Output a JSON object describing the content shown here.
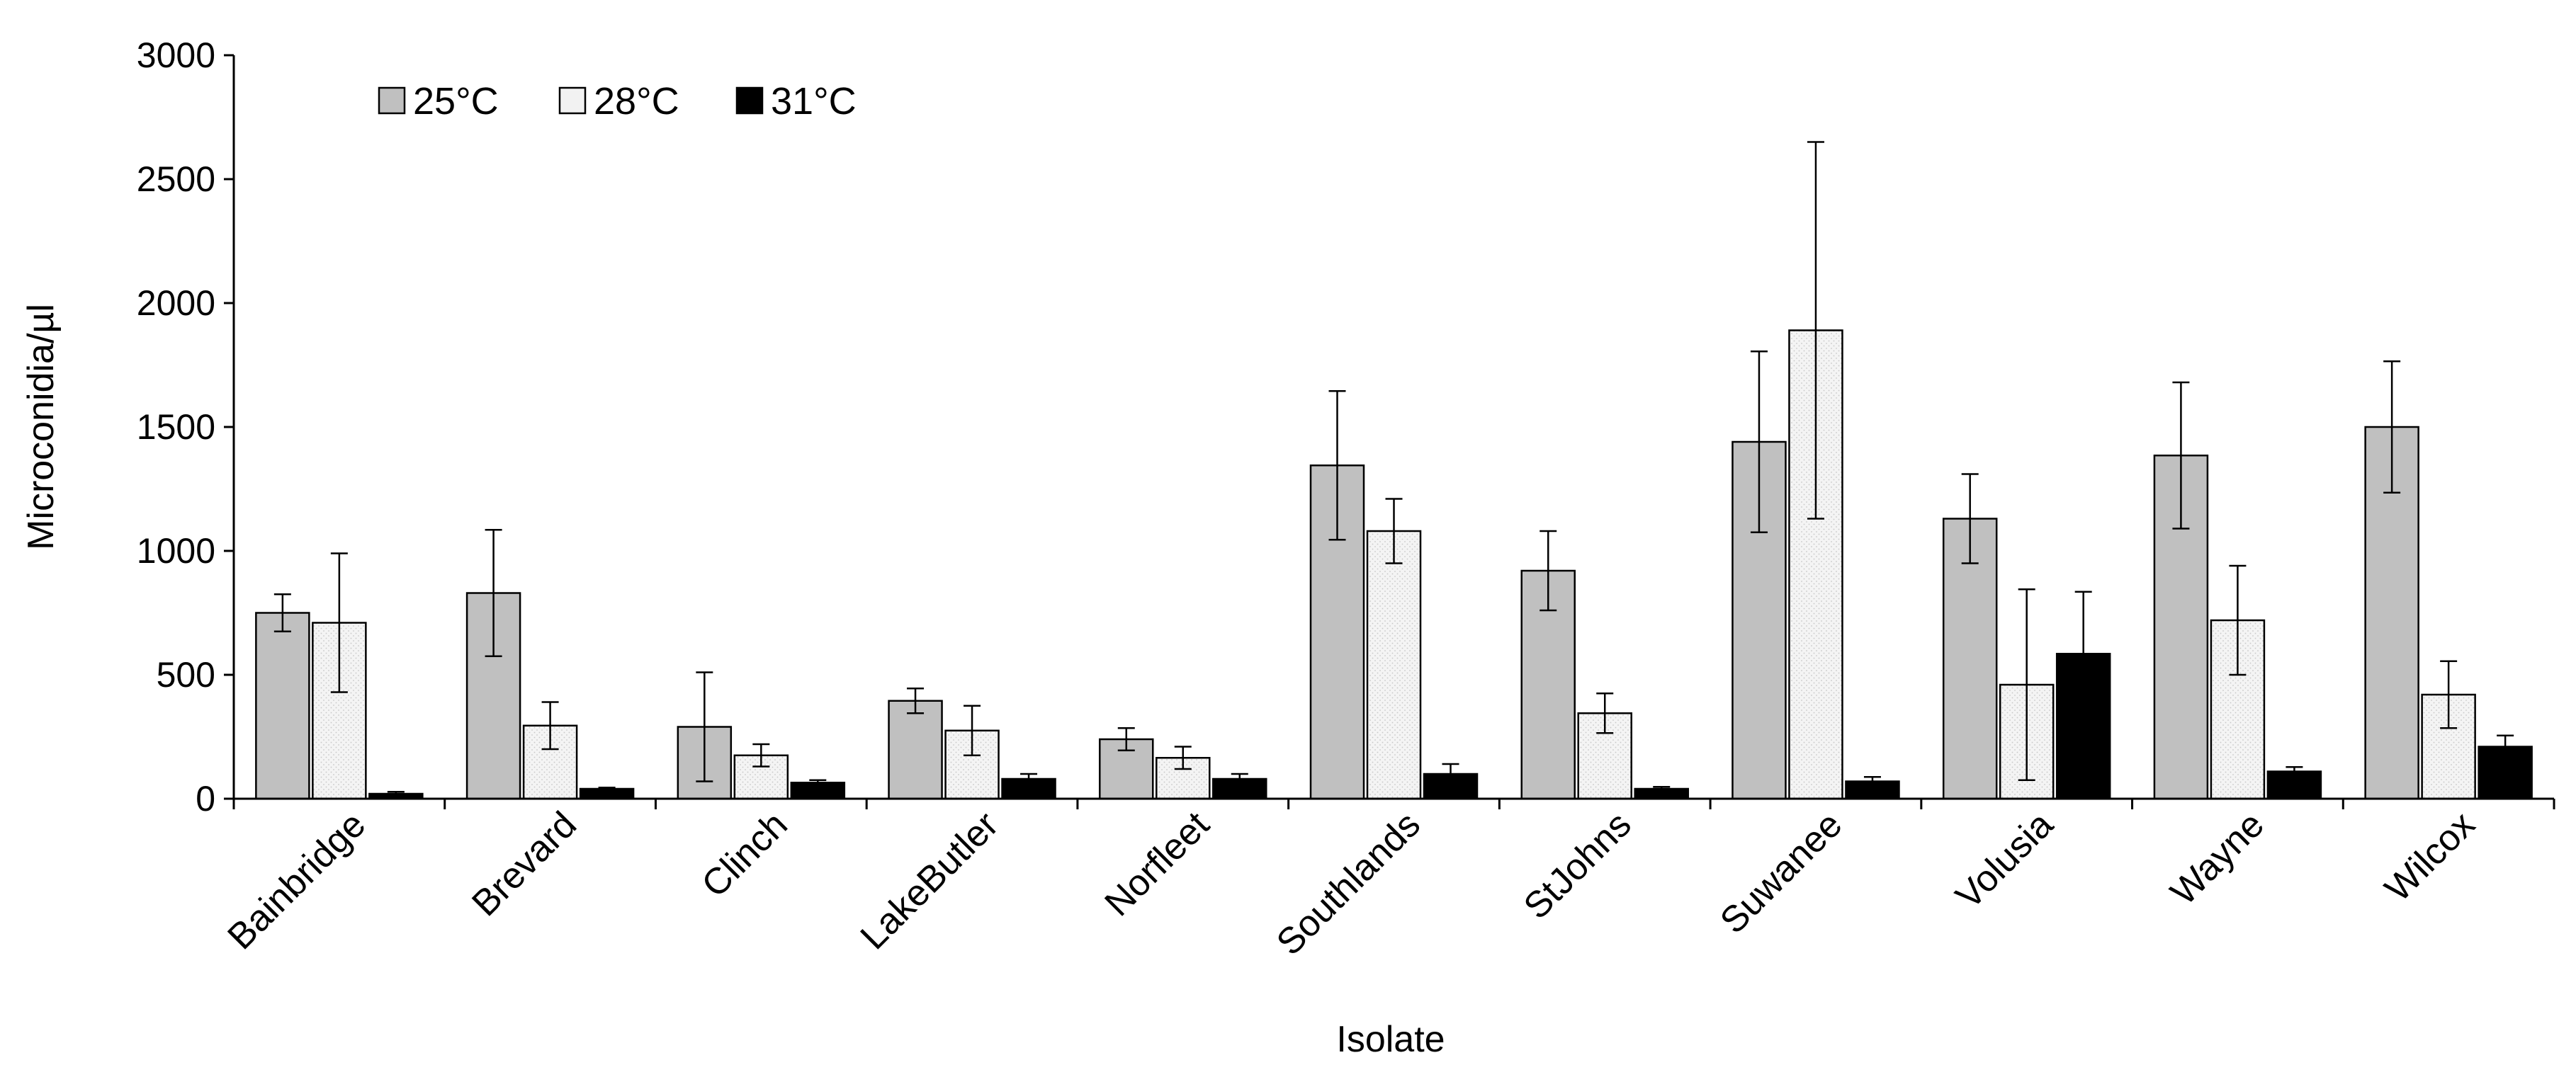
{
  "chart_data": {
    "type": "bar",
    "title": "",
    "xlabel": "Isolate",
    "ylabel": "Microconidia/µl",
    "ylim": [
      0,
      3000
    ],
    "yticks": [
      0,
      500,
      1000,
      1500,
      2000,
      2500,
      3000
    ],
    "grid": false,
    "legend_position": "top-left",
    "categories": [
      "Bainbridge",
      "Brevard",
      "Clinch",
      "LakeButler",
      "Norfleet",
      "Southlands",
      "StJohns",
      "Suwanee",
      "Volusia",
      "Wayne",
      "Wilcox"
    ],
    "series": [
      {
        "name": "25°C",
        "color": "#c0c0c0",
        "values": [
          750,
          830,
          290,
          395,
          240,
          1345,
          920,
          1440,
          1130,
          1385,
          1500
        ],
        "errors": [
          75,
          255,
          220,
          50,
          45,
          300,
          160,
          365,
          180,
          295,
          265
        ]
      },
      {
        "name": "28°C",
        "color": "#f2f2f2",
        "values": [
          710,
          295,
          175,
          275,
          165,
          1080,
          345,
          1890,
          460,
          720,
          420
        ],
        "errors": [
          280,
          95,
          45,
          100,
          45,
          130,
          80,
          760,
          385,
          220,
          135
        ]
      },
      {
        "name": "31°C",
        "color": "#000000",
        "values": [
          20,
          40,
          65,
          80,
          80,
          100,
          40,
          70,
          585,
          110,
          210
        ],
        "errors": [
          8,
          5,
          10,
          20,
          20,
          40,
          8,
          18,
          250,
          18,
          45
        ]
      }
    ]
  }
}
